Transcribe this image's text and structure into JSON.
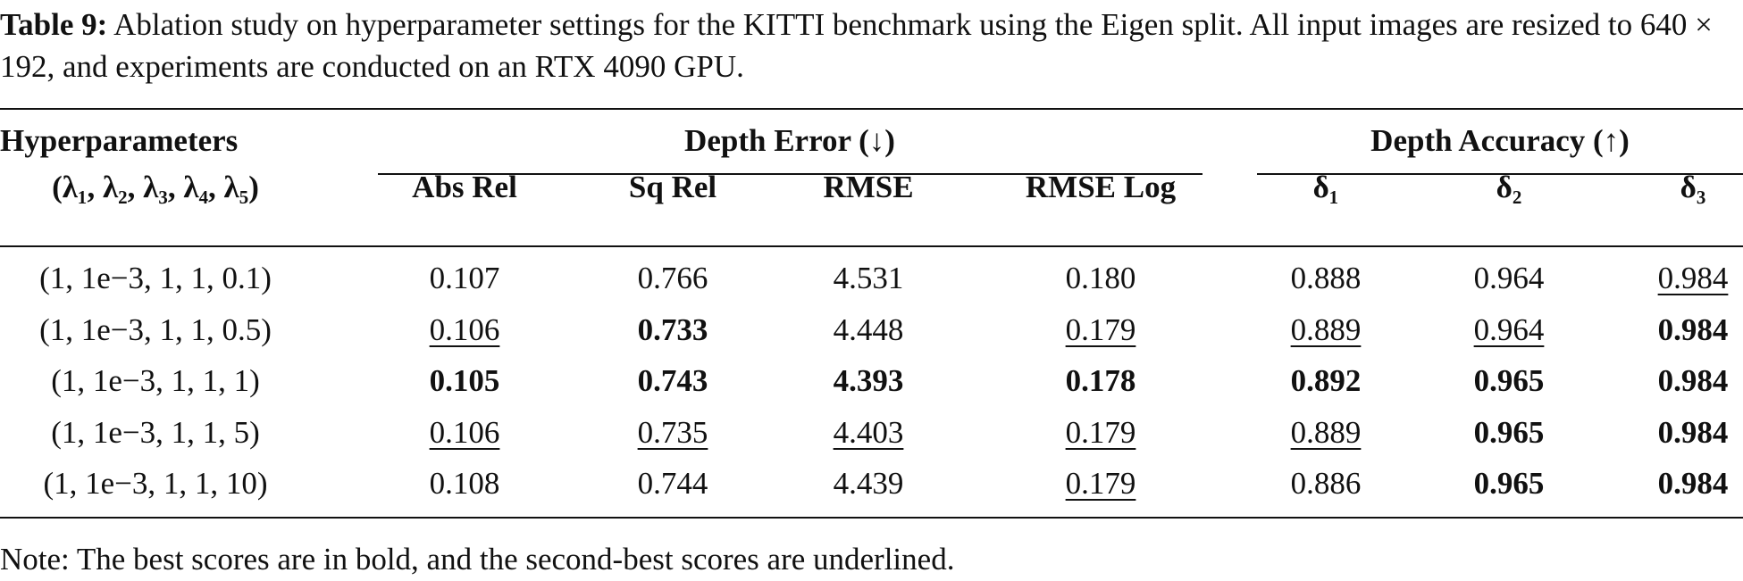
{
  "caption": {
    "label": "Table 9:",
    "text": "Ablation study on hyperparameter settings for the KITTI benchmark using the Eigen split. All input images are resized to 640 × 192, and experiments are conducted on an RTX 4090 GPU."
  },
  "table": {
    "header_top": [
      "Hyperparameters",
      "Depth Error (↓)",
      "Depth Accuracy (↑)"
    ],
    "columns": [
      "(λ₁, λ₂, λ₃, λ₄, λ₅)",
      "Abs Rel",
      "Sq Rel",
      "RMSE",
      "RMSE Log",
      "δ₁",
      "δ₂",
      "δ₃"
    ],
    "rows": [
      [
        "(1, 1e−3, 1, 1, 0.1)",
        "0.107",
        "0.766",
        "4.531",
        "0.180",
        "0.888",
        "0.964",
        "0.984"
      ],
      [
        "(1, 1e−3, 1, 1, 0.5)",
        "0.106",
        "0.733",
        "4.448",
        "0.179",
        "0.889",
        "0.964",
        "0.984"
      ],
      [
        "(1, 1e−3, 1, 1, 1)",
        "0.105",
        "0.743",
        "4.393",
        "0.178",
        "0.892",
        "0.965",
        "0.984"
      ],
      [
        "(1, 1e−3, 1, 1, 5)",
        "0.106",
        "0.735",
        "4.403",
        "0.179",
        "0.889",
        "0.965",
        "0.984"
      ],
      [
        "(1, 1e−3, 1, 1, 10)",
        "0.108",
        "0.744",
        "4.439",
        "0.179",
        "0.886",
        "0.965",
        "0.984"
      ]
    ]
  },
  "note": "Note: The best scores are in bold, and the second-best scores are underlined."
}
